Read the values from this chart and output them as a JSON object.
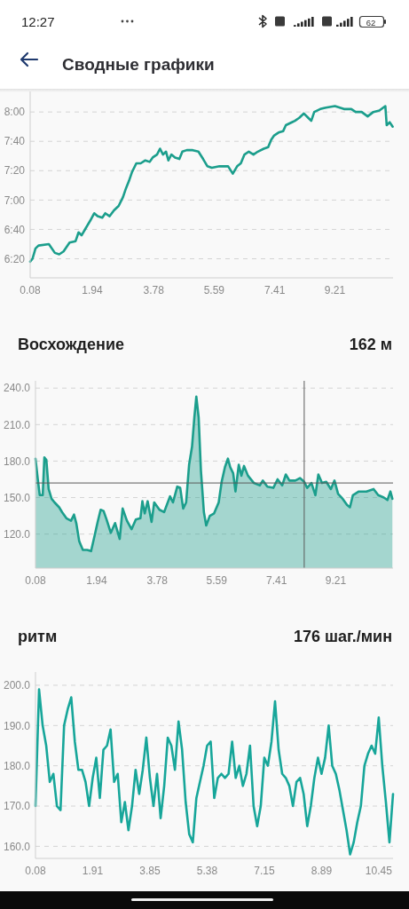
{
  "chart_data": [
    {
      "type": "line",
      "title": "Сводные графики",
      "annotations": [
        "12:27",
        "62"
      ],
      "x": [
        0.08,
        0.15,
        0.24,
        0.33,
        0.64,
        0.82,
        0.95,
        1.08,
        1.26,
        1.44,
        1.53,
        1.62,
        1.75,
        1.88,
        2.0,
        2.1,
        2.24,
        2.33,
        2.46,
        2.59,
        2.73,
        2.86,
        2.95,
        3.04,
        3.13,
        3.26,
        3.39,
        3.53,
        3.66,
        3.75,
        3.88,
        3.97,
        4.06,
        4.15,
        4.22,
        4.31,
        4.42,
        4.55,
        4.64,
        4.77,
        4.95,
        5.12,
        5.26,
        5.39,
        5.52,
        5.75,
        6.01,
        6.15,
        6.28,
        6.39,
        6.5,
        6.63,
        6.77,
        6.9,
        7.08,
        7.21,
        7.3,
        7.39,
        7.52,
        7.66,
        7.74,
        7.92,
        8.01,
        8.14,
        8.28,
        8.41,
        8.5,
        8.59,
        8.77,
        8.94,
        9.21,
        9.48,
        9.7,
        9.83,
        10.01,
        10.19,
        10.36,
        10.54,
        10.72,
        10.76,
        10.85,
        10.94
      ],
      "values": [
        378,
        380,
        387,
        389,
        390,
        384,
        383,
        385,
        391,
        392,
        398,
        396,
        401,
        406,
        411,
        409,
        408,
        411,
        409,
        413,
        416,
        422,
        428,
        433,
        439,
        445,
        445,
        447,
        446,
        449,
        451,
        455,
        451,
        453,
        447,
        451,
        449,
        448,
        453,
        454,
        454,
        453,
        448,
        443,
        442,
        443,
        443,
        438,
        443,
        445,
        451,
        453,
        451,
        453,
        455,
        456,
        461,
        464,
        466,
        467,
        471,
        473,
        474,
        476,
        479,
        476,
        474,
        480,
        482,
        483,
        484,
        482,
        482,
        480,
        480,
        477,
        480,
        481,
        484,
        471,
        473,
        470
      ],
      "color": "#1b9e8c",
      "xlim": [
        0.08,
        10.95
      ],
      "xticks": [
        0.08,
        1.94,
        3.78,
        5.59,
        7.41,
        9.21
      ],
      "ylim": [
        367,
        494
      ],
      "yticks": [
        {
          "value": 380,
          "label": "6:20"
        },
        {
          "value": 400,
          "label": "6:40"
        },
        {
          "value": 420,
          "label": "7:00"
        },
        {
          "value": 440,
          "label": "7:20"
        },
        {
          "value": 460,
          "label": "7:40"
        },
        {
          "value": 480,
          "label": "8:00"
        }
      ],
      "grid": "y"
    },
    {
      "type": "area",
      "title": "Восхождение",
      "subtitle": "162 м",
      "x": [
        0.08,
        0.15,
        0.21,
        0.3,
        0.35,
        0.41,
        0.48,
        0.57,
        0.66,
        0.8,
        0.89,
        1.02,
        1.16,
        1.25,
        1.32,
        1.41,
        1.52,
        1.65,
        1.77,
        1.88,
        1.97,
        2.06,
        2.15,
        2.24,
        2.37,
        2.5,
        2.64,
        2.73,
        2.86,
        3.0,
        3.13,
        3.27,
        3.33,
        3.4,
        3.49,
        3.61,
        3.69,
        3.85,
        3.99,
        4.17,
        4.26,
        4.39,
        4.48,
        4.57,
        4.66,
        4.75,
        4.84,
        4.91,
        4.97,
        5.04,
        5.11,
        5.2,
        5.27,
        5.38,
        5.51,
        5.65,
        5.74,
        5.84,
        5.93,
        6.0,
        6.09,
        6.16,
        6.26,
        6.34,
        6.42,
        6.54,
        6.72,
        6.9,
        6.99,
        7.13,
        7.31,
        7.44,
        7.58,
        7.69,
        7.8,
        7.98,
        8.12,
        8.25,
        8.34,
        8.47,
        8.59,
        8.68,
        8.79,
        8.92,
        9.06,
        9.17,
        9.28,
        9.42,
        9.55,
        9.64,
        9.73,
        9.91,
        10.14,
        10.36,
        10.5,
        10.67,
        10.78,
        10.87,
        10.93
      ],
      "values": [
        182,
        165,
        152,
        152,
        183,
        181,
        157,
        149,
        146,
        142,
        138,
        133,
        131,
        136,
        129,
        114,
        107,
        107,
        106,
        119,
        130,
        140,
        139,
        132,
        121,
        129,
        116,
        141,
        131,
        124,
        132,
        133,
        147,
        137,
        147,
        130,
        146,
        140,
        138,
        151,
        146,
        159,
        158,
        141,
        146,
        177,
        192,
        216,
        233,
        216,
        172,
        138,
        127,
        135,
        137,
        146,
        163,
        175,
        182,
        175,
        170,
        155,
        177,
        168,
        176,
        168,
        162,
        160,
        164,
        159,
        158,
        165,
        160,
        169,
        164,
        164,
        166,
        163,
        158,
        162,
        152,
        169,
        162,
        163,
        157,
        164,
        153,
        149,
        144,
        142,
        152,
        155,
        155,
        157,
        152,
        150,
        148,
        155,
        149
      ],
      "color": "#1b9e8c",
      "xlim": [
        0.08,
        10.95
      ],
      "xticks": [
        0.08,
        1.94,
        3.78,
        5.59,
        7.41,
        9.21
      ],
      "ylim": [
        92,
        246
      ],
      "yticks": [
        {
          "value": 120,
          "label": "120.0"
        },
        {
          "value": 150,
          "label": "150.0"
        },
        {
          "value": 180,
          "label": "180.0"
        },
        {
          "value": 210,
          "label": "210.0"
        },
        {
          "value": 240,
          "label": "240.0"
        }
      ],
      "grid": "y",
      "ref_lines": [
        {
          "axis": "y",
          "value": 162,
          "color": "#5a5a5a"
        },
        {
          "axis": "x",
          "value": 8.25,
          "color": "#5a5a5a"
        }
      ]
    },
    {
      "type": "line",
      "title": "ритм",
      "subtitle": "176 шаг./мин",
      "categories": [
        "0.08",
        null,
        null,
        null,
        null,
        null,
        null,
        null,
        null,
        null,
        null,
        null,
        null,
        null,
        null,
        null,
        "1.91",
        null,
        null,
        null,
        null,
        null,
        null,
        null,
        null,
        null,
        null,
        null,
        null,
        null,
        null,
        null,
        "3.85",
        null,
        null,
        null,
        null,
        null,
        null,
        null,
        null,
        null,
        null,
        null,
        null,
        null,
        null,
        null,
        "5.38",
        null,
        null,
        null,
        null,
        null,
        null,
        null,
        null,
        null,
        null,
        null,
        null,
        null,
        null,
        null,
        "7.15",
        null,
        null,
        null,
        null,
        null,
        null,
        null,
        null,
        null,
        null,
        null,
        null,
        null,
        null,
        null,
        "8.89",
        null,
        null,
        null,
        null,
        null,
        null,
        null,
        null,
        null,
        null,
        null,
        null,
        null,
        null,
        null,
        "10.45",
        null,
        null,
        null,
        null
      ],
      "values": [
        170,
        199,
        190,
        185,
        176,
        178,
        170,
        169,
        190,
        194,
        197,
        186,
        179,
        179,
        176,
        170,
        177,
        182,
        172,
        184,
        185,
        189,
        176,
        178,
        166,
        171,
        164,
        170,
        179,
        173,
        179,
        187,
        177,
        170,
        178,
        167,
        175,
        187,
        185,
        179,
        191,
        184,
        171,
        163,
        161,
        172,
        176,
        180,
        185,
        186,
        172,
        177,
        178,
        177,
        178,
        186,
        177,
        180,
        175,
        178,
        185,
        170,
        165,
        170,
        182,
        180,
        186,
        196,
        184,
        178,
        177,
        175,
        170,
        176,
        177,
        173,
        165,
        170,
        177,
        182,
        178,
        182,
        190,
        180,
        178,
        174,
        169,
        164,
        158,
        161,
        166,
        170,
        180,
        183,
        185,
        183,
        192,
        180,
        171,
        161,
        173
      ],
      "color": "#17a69a",
      "ylim": [
        157,
        203.3
      ],
      "yticks": [
        {
          "value": 160,
          "label": "160.0"
        },
        {
          "value": 170,
          "label": "170.0"
        },
        {
          "value": 180,
          "label": "180.0"
        },
        {
          "value": 190,
          "label": "190.0"
        },
        {
          "value": 200,
          "label": "200.0"
        }
      ],
      "grid": "y"
    }
  ]
}
